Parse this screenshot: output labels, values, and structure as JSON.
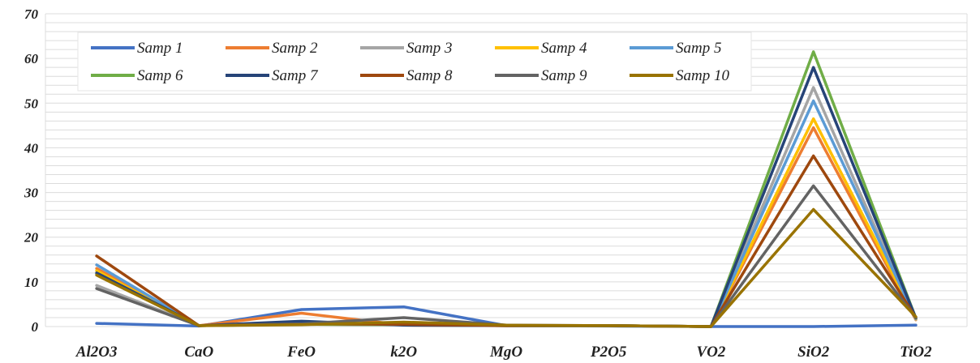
{
  "chart_data": {
    "type": "line",
    "title": "",
    "xlabel": "",
    "ylabel": "",
    "categories": [
      "Al2O3",
      "CaO",
      "FeO",
      "k2O",
      "MgO",
      "P2O5",
      "VO2",
      "SiO2",
      "TiO2"
    ],
    "ylim": [
      0,
      70
    ],
    "yticks": [
      0,
      10,
      20,
      30,
      40,
      50,
      60,
      70
    ],
    "minor_gridlines": true,
    "legend_position": "top-left-inside",
    "series": [
      {
        "name": "Samp 1",
        "color": "#4472C4",
        "values": [
          0.7,
          0.1,
          3.8,
          4.4,
          0.2,
          0.1,
          0.0,
          0.0,
          0.3
        ]
      },
      {
        "name": "Samp 2",
        "color": "#ED7D31",
        "values": [
          13.0,
          0.2,
          3.0,
          0.3,
          0.2,
          0.2,
          0.0,
          44.5,
          1.5
        ]
      },
      {
        "name": "Samp 3",
        "color": "#A5A5A5",
        "values": [
          9.2,
          0.2,
          0.5,
          0.4,
          0.2,
          0.2,
          0.0,
          53.5,
          1.6
        ]
      },
      {
        "name": "Samp 4",
        "color": "#FFC000",
        "values": [
          12.5,
          0.2,
          0.5,
          0.4,
          0.2,
          0.2,
          0.0,
          46.5,
          1.7
        ]
      },
      {
        "name": "Samp 5",
        "color": "#5B9BD5",
        "values": [
          13.8,
          0.2,
          0.5,
          0.4,
          0.2,
          0.2,
          0.0,
          50.5,
          1.8
        ]
      },
      {
        "name": "Samp 6",
        "color": "#70AD47",
        "values": [
          11.8,
          0.2,
          0.5,
          0.4,
          0.2,
          0.2,
          0.0,
          61.5,
          1.9
        ]
      },
      {
        "name": "Samp 7",
        "color": "#264478",
        "values": [
          12.0,
          0.2,
          1.2,
          0.3,
          0.2,
          0.2,
          0.0,
          58.0,
          1.9
        ]
      },
      {
        "name": "Samp 8",
        "color": "#9E480E",
        "values": [
          15.8,
          0.2,
          0.6,
          0.5,
          0.2,
          0.2,
          0.0,
          38.2,
          2.0
        ]
      },
      {
        "name": "Samp 9",
        "color": "#636363",
        "values": [
          8.5,
          0.2,
          0.6,
          2.0,
          0.3,
          0.2,
          0.0,
          31.5,
          2.0
        ]
      },
      {
        "name": "Samp 10",
        "color": "#997300",
        "values": [
          11.5,
          0.2,
          0.4,
          1.0,
          0.3,
          0.2,
          0.0,
          26.2,
          2.2
        ]
      }
    ]
  }
}
